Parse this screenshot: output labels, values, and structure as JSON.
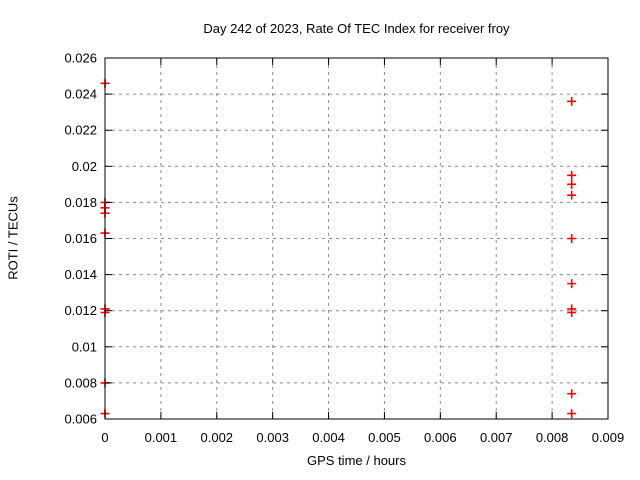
{
  "page": {
    "background": "#ffffff"
  },
  "chart_data": {
    "type": "scatter",
    "title": "Day 242 of 2023, Rate Of TEC Index for receiver froy",
    "xlabel": "GPS time / hours",
    "ylabel": "ROTI / TECUs",
    "xlim": [
      0,
      0.009
    ],
    "ylim": [
      0.006,
      0.026
    ],
    "grid": true,
    "legend": false,
    "axis_color": "#000000",
    "grid_color": "#8c8c8c",
    "xticks": {
      "values": [
        0,
        0.001,
        0.002,
        0.003,
        0.004,
        0.005,
        0.006,
        0.007,
        0.008,
        0.009
      ],
      "labels": [
        "0",
        "0.001",
        "0.002",
        "0.003",
        "0.004",
        "0.005",
        "0.006",
        "0.007",
        "0.008",
        "0.009"
      ]
    },
    "yticks": {
      "values": [
        0.006,
        0.008,
        0.01,
        0.012,
        0.014,
        0.016,
        0.018,
        0.02,
        0.022,
        0.024,
        0.026
      ],
      "labels": [
        "0.006",
        "0.008",
        "0.01",
        "0.012",
        "0.014",
        "0.016",
        "0.018",
        "0.02",
        "0.022",
        "0.024",
        "0.026"
      ]
    },
    "series": [
      {
        "name": "ROTI",
        "marker": "plus",
        "color": "#ff0000",
        "points": [
          [
            0,
            0.0246
          ],
          [
            0,
            0.018
          ],
          [
            0,
            0.0177
          ],
          [
            0,
            0.0174
          ],
          [
            0,
            0.0163
          ],
          [
            0,
            0.0121
          ],
          [
            0,
            0.0119
          ],
          [
            0,
            0.008
          ],
          [
            0,
            0.0063
          ],
          [
            0.00835,
            0.0236
          ],
          [
            0.00835,
            0.0195
          ],
          [
            0.00835,
            0.019
          ],
          [
            0.00835,
            0.0184
          ],
          [
            0.00835,
            0.016
          ],
          [
            0.00835,
            0.0135
          ],
          [
            0.00835,
            0.0121
          ],
          [
            0.00835,
            0.0119
          ],
          [
            0.00835,
            0.0074
          ],
          [
            0.00835,
            0.0063
          ]
        ]
      }
    ]
  }
}
